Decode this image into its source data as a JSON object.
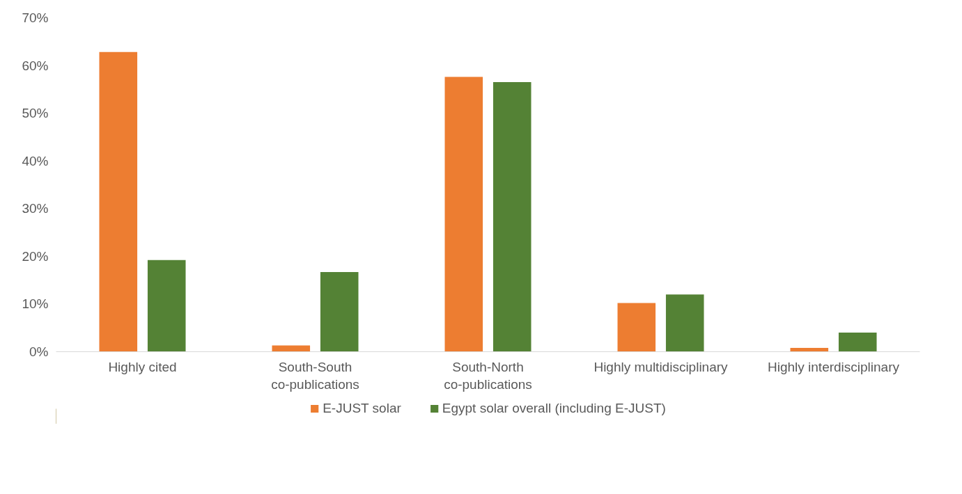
{
  "chart_data": {
    "type": "bar",
    "categories": [
      "Highly cited",
      "South-South\nco-publications",
      "South-North\nco-publications",
      "Highly multidisciplinary",
      "Highly interdisciplinary"
    ],
    "series": [
      {
        "name": "E-JUST solar",
        "color": "#ed7d31",
        "values": [
          62.8,
          1.3,
          57.6,
          10.2,
          0.8
        ]
      },
      {
        "name": "Egypt solar overall (including E-JUST)",
        "color": "#548235",
        "values": [
          19.2,
          16.7,
          56.5,
          12.0,
          4.0
        ]
      }
    ],
    "ylim": [
      0,
      70
    ],
    "yticks": [
      {
        "value": 0,
        "label": "0%"
      },
      {
        "value": 10,
        "label": "10%"
      },
      {
        "value": 20,
        "label": "20%"
      },
      {
        "value": 30,
        "label": "30%"
      },
      {
        "value": 40,
        "label": "40%"
      },
      {
        "value": 50,
        "label": "50%"
      },
      {
        "value": 60,
        "label": "60%"
      },
      {
        "value": 70,
        "label": "70%"
      }
    ],
    "grid": false,
    "legend": "bottom"
  }
}
